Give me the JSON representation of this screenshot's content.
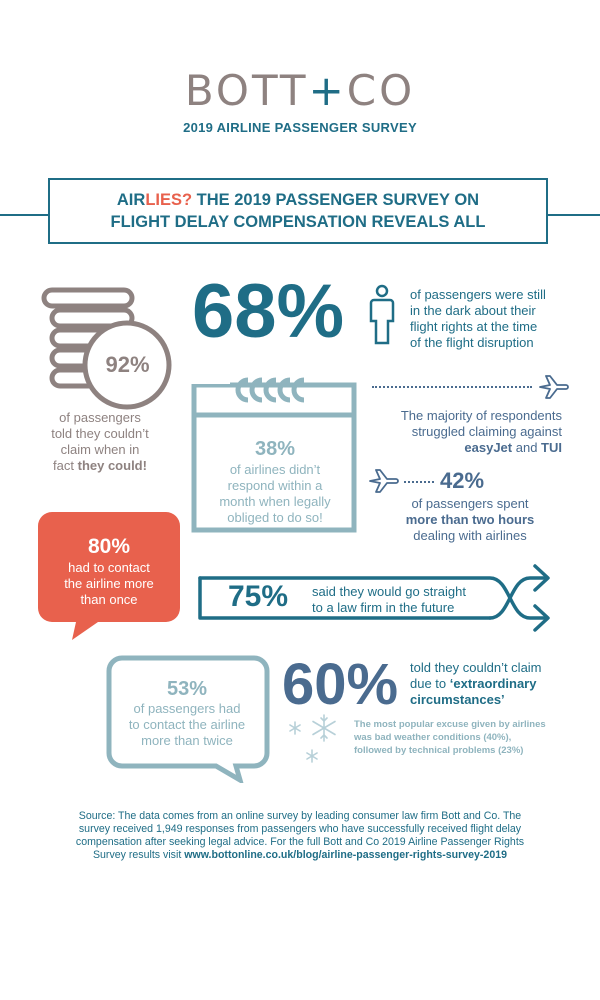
{
  "header": {
    "logo_left": "BOTT",
    "logo_plus": "+",
    "logo_right": "CO",
    "subtitle": "2019 AIRLINE PASSENGER SURVEY"
  },
  "title": {
    "line1_pre": "AIR",
    "line1_accent": "LIES?",
    "line1_post": " THE 2019 PASSENGER SURVEY ON",
    "line2": "FLIGHT DELAY COMPENSATION REVEALS ALL"
  },
  "stat_92": {
    "value": "92%",
    "text1": "of passengers",
    "text2": "told they couldn’t",
    "text3": "claim when in",
    "text4_pre": "fact ",
    "text4_bold": "they could!"
  },
  "stat_68": {
    "value": "68%",
    "text1": "of passengers were still",
    "text2": "in the dark about their",
    "text3": "flight rights at the time",
    "text4": "of the flight disruption"
  },
  "stat_38": {
    "value": "38%",
    "text1": "of airlines didn’t",
    "text2": "respond within a",
    "text3": "month when legally",
    "text4": "obliged to do so!"
  },
  "airlines": {
    "text1": "The majority of respondents",
    "text2": "struggled claiming against",
    "airline1": "easyJet",
    "and": " and ",
    "airline2": "TUI"
  },
  "stat_42": {
    "value": "42%",
    "text1": "of passengers spent",
    "text2_bold": "more than two hours",
    "text3": "dealing with airlines"
  },
  "stat_80": {
    "value": "80%",
    "text1": "had to contact",
    "text2": "the airline more",
    "text3": "than once"
  },
  "stat_75": {
    "value": "75%",
    "text1": "said they would go straight",
    "text2": "to a law firm in the future"
  },
  "stat_53": {
    "value": "53%",
    "text1": "of passengers had",
    "text2": "to contact the airline",
    "text3": "more than twice"
  },
  "stat_60": {
    "value": "60%",
    "text1": "told they couldn’t claim",
    "text2_pre": "due to ",
    "text2_bold": "‘extraordinary",
    "text3_bold": "circumstances’",
    "note1": "The most popular excuse given by airlines",
    "note2": "was bad weather conditions (40%),",
    "note3": "followed by technical problems (23%)"
  },
  "footer": {
    "line1": "Source: The data comes from an online survey by leading consumer law firm Bott and Co. The",
    "line2": "survey received 1,949 responses from passengers who have successfully received flight delay",
    "line3": "compensation after seeking legal advice. For the full Bott and Co 2019 Airline Passenger Rights",
    "line4_pre": "Survey results visit ",
    "line4_link": "www.bottonline.co.uk/blog/airline-passenger-rights-survey-2019"
  },
  "colors": {
    "teal": "#1f6d86",
    "light_teal": "#8fb4be",
    "coral": "#e8614d",
    "gray": "#8e8280",
    "slate": "#4a6b8f"
  },
  "icons": [
    "coins-icon",
    "person-icon",
    "calendar-icon",
    "plane-icon",
    "speech-bubble-icon",
    "arrows-icon",
    "snowflake-icon"
  ]
}
